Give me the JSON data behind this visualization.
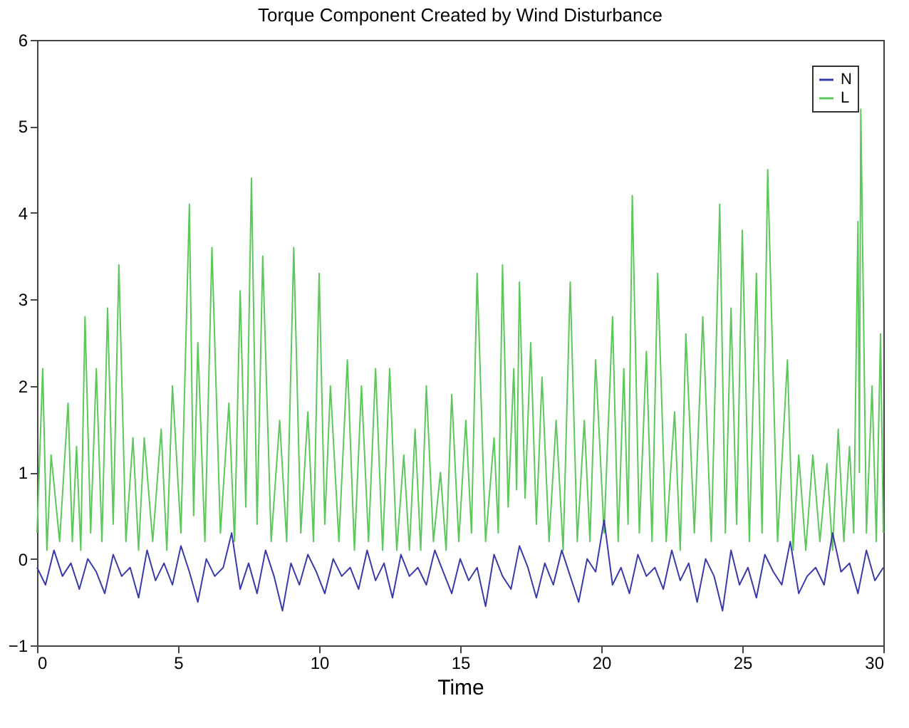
{
  "chart_data": {
    "type": "line",
    "title": "Torque Component Created by Wind Disturbance",
    "xlabel": "Time",
    "xlim": [
      0,
      30
    ],
    "xticks": [
      0,
      5,
      10,
      15,
      20,
      25,
      30
    ],
    "ylim": [
      -1,
      6
    ],
    "yticks": [
      -1,
      0,
      1,
      2,
      3,
      4,
      5,
      6
    ],
    "grid": false,
    "legend": "top right",
    "marker": "none",
    "line_style": "solid",
    "series": [
      {
        "name": "N",
        "color": "#3a3aa8",
        "x": [
          0,
          0.3,
          0.6,
          0.9,
          1.2,
          1.5,
          1.8,
          2.1,
          2.4,
          2.7,
          3,
          3.3,
          3.6,
          3.9,
          4.2,
          4.5,
          4.8,
          5.1,
          5.4,
          5.7,
          6,
          6.3,
          6.6,
          6.9,
          7.2,
          7.5,
          7.8,
          8.1,
          8.4,
          8.7,
          9,
          9.3,
          9.6,
          9.9,
          10.2,
          10.5,
          10.8,
          11.1,
          11.4,
          11.7,
          12,
          12.3,
          12.6,
          12.9,
          13.2,
          13.5,
          13.8,
          14.1,
          14.4,
          14.7,
          15,
          15.3,
          15.6,
          15.9,
          16.2,
          16.5,
          16.8,
          17.1,
          17.4,
          17.7,
          18,
          18.3,
          18.6,
          18.9,
          19.2,
          19.5,
          19.8,
          20.1,
          20.4,
          20.7,
          21,
          21.3,
          21.6,
          21.9,
          22.2,
          22.5,
          22.8,
          23.1,
          23.4,
          23.7,
          24,
          24.3,
          24.6,
          24.9,
          25.2,
          25.5,
          25.8,
          26.1,
          26.4,
          26.7,
          27,
          27.3,
          27.6,
          27.9,
          28.2,
          28.5,
          28.8,
          29.1,
          29.4,
          29.7,
          30
        ],
        "values": [
          -0.1,
          -0.3,
          0.1,
          -0.2,
          -0.05,
          -0.35,
          0.0,
          -0.15,
          -0.4,
          0.05,
          -0.2,
          -0.1,
          -0.45,
          0.1,
          -0.25,
          -0.05,
          -0.3,
          0.15,
          -0.15,
          -0.5,
          0.0,
          -0.2,
          -0.1,
          0.3,
          -0.35,
          -0.05,
          -0.4,
          0.1,
          -0.2,
          -0.6,
          -0.05,
          -0.3,
          0.05,
          -0.15,
          -0.4,
          0.0,
          -0.2,
          -0.1,
          -0.35,
          0.1,
          -0.25,
          -0.05,
          -0.45,
          0.05,
          -0.2,
          -0.1,
          -0.3,
          0.1,
          -0.15,
          -0.4,
          0.0,
          -0.25,
          -0.1,
          -0.55,
          0.05,
          -0.2,
          -0.35,
          0.15,
          -0.1,
          -0.45,
          -0.05,
          -0.3,
          0.1,
          -0.2,
          -0.5,
          0.0,
          -0.15,
          0.45,
          -0.3,
          -0.1,
          -0.4,
          0.05,
          -0.2,
          -0.1,
          -0.35,
          0.1,
          -0.25,
          -0.05,
          -0.5,
          0.0,
          -0.2,
          -0.6,
          0.1,
          -0.3,
          -0.1,
          -0.45,
          0.05,
          -0.15,
          -0.3,
          0.2,
          -0.4,
          -0.2,
          -0.1,
          -0.3,
          0.3,
          -0.15,
          -0.05,
          -0.4,
          0.1,
          -0.25,
          -0.1
        ]
      },
      {
        "name": "L",
        "color": "#5cc85c",
        "x": [
          0,
          0.2,
          0.35,
          0.5,
          0.8,
          1.1,
          1.25,
          1.4,
          1.55,
          1.7,
          1.9,
          2.1,
          2.3,
          2.5,
          2.7,
          2.9,
          3.15,
          3.4,
          3.6,
          3.8,
          4.1,
          4.4,
          4.6,
          4.8,
          5.1,
          5.4,
          5.55,
          5.7,
          5.95,
          6.2,
          6.5,
          6.8,
          7.0,
          7.2,
          7.4,
          7.6,
          7.8,
          8.0,
          8.3,
          8.6,
          8.85,
          9.1,
          9.35,
          9.6,
          9.8,
          10.0,
          10.2,
          10.4,
          10.7,
          11.0,
          11.25,
          11.5,
          11.75,
          12.0,
          12.25,
          12.5,
          12.75,
          13.0,
          13.2,
          13.4,
          13.6,
          13.8,
          14.05,
          14.3,
          14.5,
          14.7,
          14.95,
          15.2,
          15.4,
          15.6,
          15.9,
          16.2,
          16.35,
          16.5,
          16.7,
          16.9,
          17.0,
          17.1,
          17.3,
          17.5,
          17.7,
          17.9,
          18.15,
          18.4,
          18.65,
          18.9,
          19.15,
          19.4,
          19.6,
          19.8,
          20.1,
          20.4,
          20.6,
          20.8,
          20.95,
          21.1,
          21.35,
          21.6,
          21.8,
          22.0,
          22.3,
          22.6,
          22.8,
          23.0,
          23.3,
          23.6,
          23.9,
          24.2,
          24.4,
          24.6,
          24.8,
          25.0,
          25.25,
          25.5,
          25.7,
          25.9,
          26.25,
          26.6,
          26.8,
          27.0,
          27.25,
          27.5,
          27.75,
          28.0,
          28.2,
          28.4,
          28.6,
          28.8,
          28.95,
          29.1,
          29.15,
          29.2,
          29.4,
          29.6,
          29.75,
          29.9,
          30
        ],
        "values": [
          0.3,
          2.2,
          0.1,
          1.2,
          0.2,
          1.8,
          0.2,
          1.3,
          0.1,
          2.8,
          0.3,
          2.2,
          0.2,
          2.9,
          0.4,
          3.4,
          0.2,
          1.4,
          0.1,
          1.4,
          0.2,
          1.5,
          0.1,
          2.0,
          0.3,
          4.1,
          0.5,
          2.5,
          0.2,
          3.6,
          0.3,
          1.8,
          0.2,
          3.1,
          0.6,
          4.4,
          0.4,
          3.5,
          0.2,
          1.6,
          0.2,
          3.6,
          0.3,
          1.7,
          0.2,
          3.3,
          0.4,
          2.0,
          0.2,
          2.3,
          0.1,
          2.0,
          0.2,
          2.2,
          0.1,
          2.2,
          0.1,
          1.2,
          0.1,
          1.5,
          0.1,
          2.0,
          0.2,
          1.0,
          0.1,
          1.9,
          0.2,
          1.6,
          0.3,
          3.3,
          0.2,
          1.4,
          0.3,
          3.4,
          0.6,
          2.2,
          0.8,
          3.2,
          0.7,
          2.5,
          0.4,
          2.1,
          0.2,
          1.6,
          0.1,
          3.2,
          0.2,
          1.6,
          0.2,
          2.3,
          0.3,
          2.8,
          0.2,
          2.2,
          0.4,
          4.2,
          0.3,
          2.4,
          0.2,
          3.3,
          0.2,
          1.7,
          0.1,
          2.6,
          0.3,
          2.8,
          0.2,
          4.1,
          0.3,
          2.9,
          0.4,
          3.8,
          0.2,
          3.3,
          0.3,
          4.5,
          0.2,
          2.3,
          0.1,
          1.2,
          0.1,
          1.2,
          0.2,
          1.1,
          0.1,
          1.5,
          0.2,
          1.3,
          0.3,
          3.9,
          1.0,
          5.2,
          0.3,
          2.0,
          0.2,
          2.6,
          0.3
        ]
      }
    ]
  }
}
